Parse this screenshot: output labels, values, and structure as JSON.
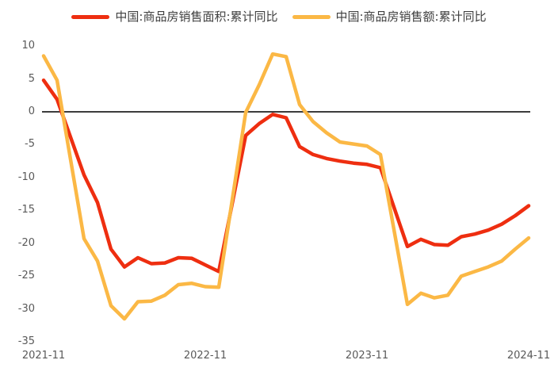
{
  "chart_data": {
    "type": "line",
    "title": "",
    "legend_position": "top",
    "grid": false,
    "zero_line": true,
    "zero_line_color": "#3c3c3c",
    "axis_label_color": "#595959",
    "legend_text_color": "#3f3f3f",
    "background_color": "#ffffff",
    "ylim": [
      -35,
      10
    ],
    "y_ticks": [
      10,
      5,
      0,
      -5,
      -10,
      -15,
      -20,
      -25,
      -30,
      -35
    ],
    "x_tick_labels": [
      "2021-11",
      "2022-11",
      "2023-11",
      "2024-11"
    ],
    "x": [
      "2021-11",
      "2021-12",
      "2022-02",
      "2022-03",
      "2022-04",
      "2022-05",
      "2022-06",
      "2022-07",
      "2022-08",
      "2022-09",
      "2022-10",
      "2022-11",
      "2022-12",
      "2023-02",
      "2023-03",
      "2023-04",
      "2023-05",
      "2023-06",
      "2023-07",
      "2023-08",
      "2023-09",
      "2023-10",
      "2023-11",
      "2023-12",
      "2024-02",
      "2024-03",
      "2024-04",
      "2024-05",
      "2024-06",
      "2024-07",
      "2024-08",
      "2024-09",
      "2024-10",
      "2024-11"
    ],
    "series": [
      {
        "name": "中国:商品房销售面积:累计同比",
        "color": "#ee2e10",
        "values": [
          4.8,
          1.9,
          -9.6,
          -13.8,
          -20.9,
          -23.6,
          -22.2,
          -23.1,
          -23.0,
          -22.2,
          -22.3,
          -23.3,
          -24.3,
          -3.6,
          -1.8,
          -0.4,
          -0.9,
          -5.3,
          -6.5,
          -7.1,
          -7.5,
          -7.8,
          -8.0,
          -8.5,
          -20.5,
          -19.4,
          -20.2,
          -20.3,
          -19.0,
          -18.6,
          -18.0,
          -17.1,
          -15.8,
          -14.3
        ]
      },
      {
        "name": "中国:商品房销售额:累计同比",
        "color": "#fbb845",
        "values": [
          8.5,
          4.8,
          -19.3,
          -22.7,
          -29.5,
          -31.5,
          -28.9,
          -28.8,
          -27.9,
          -26.3,
          -26.1,
          -26.6,
          -26.7,
          -0.1,
          4.1,
          8.8,
          8.4,
          1.1,
          -1.5,
          -3.2,
          -4.6,
          -4.9,
          -5.2,
          -6.5,
          -29.3,
          -27.6,
          -28.3,
          -27.9,
          -25.0,
          -24.3,
          -23.6,
          -22.7,
          -20.9,
          -19.2
        ]
      }
    ]
  }
}
